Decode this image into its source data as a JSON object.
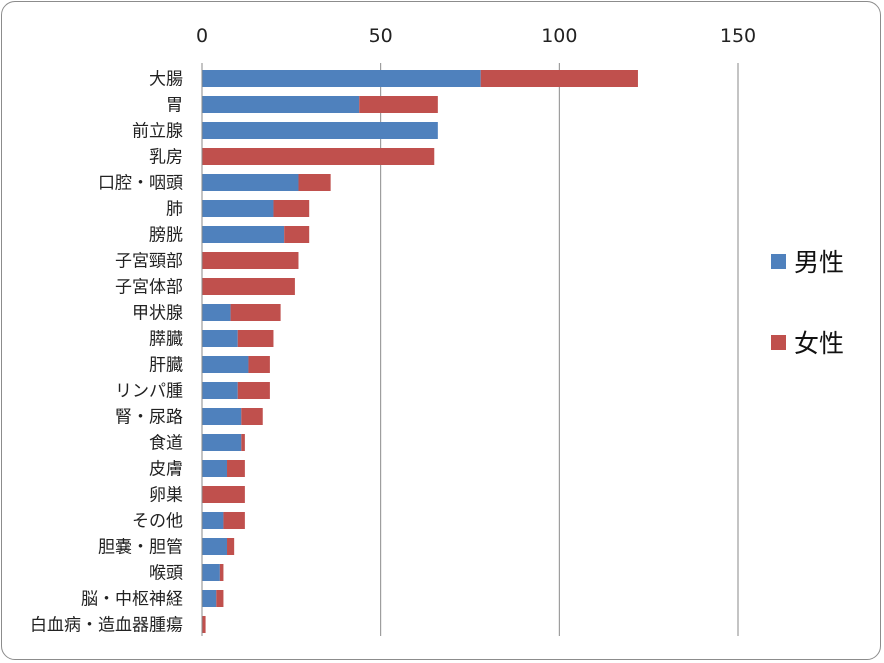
{
  "chart_data": {
    "type": "bar",
    "orientation": "horizontal",
    "stacked": true,
    "categories": [
      "大腸",
      "胃",
      "前立腺",
      "乳房",
      "口腔・咽頭",
      "肺",
      "膀胱",
      "子宮頸部",
      "子宮体部",
      "甲状腺",
      "膵臓",
      "肝臓",
      "リンパ腫",
      "腎・尿路",
      "食道",
      "皮膚",
      "卵巣",
      "その他",
      "胆嚢・胆管",
      "喉頭",
      "脳・中枢神経",
      "白血病・造血器腫瘍"
    ],
    "series": [
      {
        "name": "男性",
        "color": "#4F81BD",
        "values": [
          78,
          44,
          66,
          0,
          27,
          20,
          23,
          0,
          0,
          8,
          10,
          13,
          10,
          11,
          11,
          7,
          0,
          6,
          7,
          5,
          4,
          0
        ]
      },
      {
        "name": "女性",
        "color": "#C0504D",
        "values": [
          44,
          22,
          0,
          65,
          9,
          10,
          7,
          27,
          26,
          14,
          10,
          6,
          9,
          6,
          1,
          5,
          12,
          6,
          2,
          1,
          2,
          1
        ]
      }
    ],
    "xlim": [
      0,
      150
    ],
    "xticks": [
      0,
      50,
      100,
      150
    ],
    "x_axis_position": "top",
    "grid": "vertical",
    "legend": "right",
    "title": "",
    "xlabel": "",
    "ylabel": ""
  }
}
